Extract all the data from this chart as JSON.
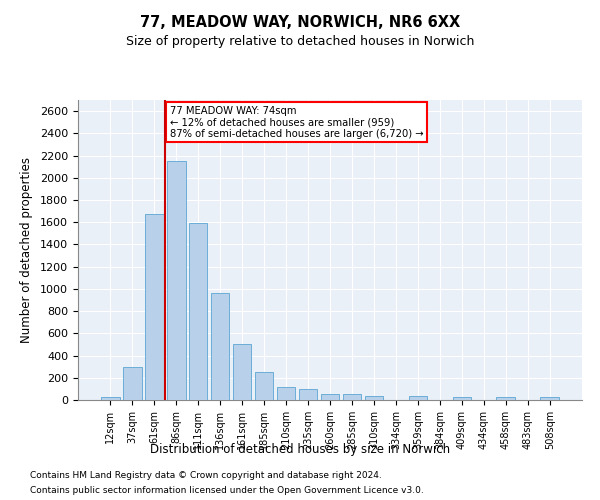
{
  "title1": "77, MEADOW WAY, NORWICH, NR6 6XX",
  "title2": "Size of property relative to detached houses in Norwich",
  "xlabel": "Distribution of detached houses by size in Norwich",
  "ylabel": "Number of detached properties",
  "bar_color": "#b8d0ea",
  "bar_edge_color": "#6aaed6",
  "background_color": "#eaf0f8",
  "grid_color": "#ffffff",
  "categories": [
    "12sqm",
    "37sqm",
    "61sqm",
    "86sqm",
    "111sqm",
    "136sqm",
    "161sqm",
    "185sqm",
    "210sqm",
    "235sqm",
    "260sqm",
    "285sqm",
    "310sqm",
    "334sqm",
    "359sqm",
    "384sqm",
    "409sqm",
    "434sqm",
    "458sqm",
    "483sqm",
    "508sqm"
  ],
  "values": [
    25,
    300,
    1670,
    2150,
    1590,
    960,
    500,
    250,
    120,
    100,
    50,
    50,
    35,
    0,
    35,
    0,
    25,
    0,
    25,
    0,
    25
  ],
  "ylim": [
    0,
    2700
  ],
  "yticks": [
    0,
    200,
    400,
    600,
    800,
    1000,
    1200,
    1400,
    1600,
    1800,
    2000,
    2200,
    2400,
    2600
  ],
  "vline_x": 2.5,
  "vline_color": "#cc0000",
  "annot_line1": "77 MEADOW WAY: 74sqm",
  "annot_line2": "← 12% of detached houses are smaller (959)",
  "annot_line3": "87% of semi-detached houses are larger (6,720) →",
  "footer1": "Contains HM Land Registry data © Crown copyright and database right 2024.",
  "footer2": "Contains public sector information licensed under the Open Government Licence v3.0."
}
